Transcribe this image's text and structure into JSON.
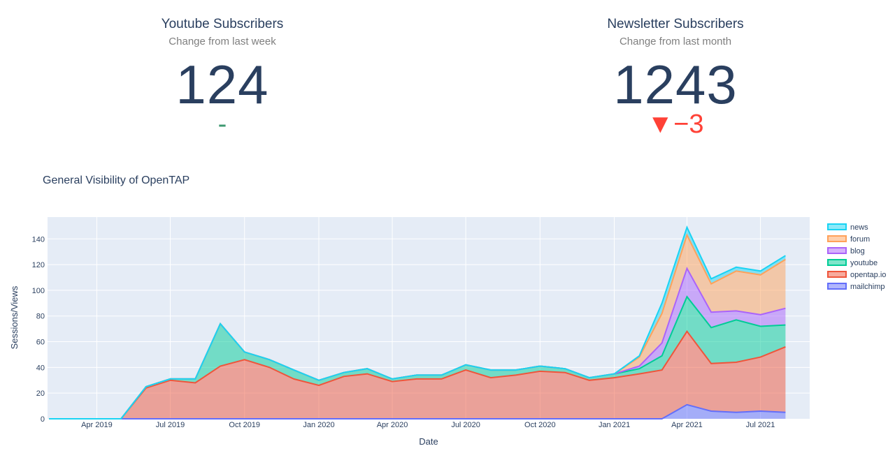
{
  "indicators": [
    {
      "title": "Youtube Subscribers",
      "subtitle": "Change from last week",
      "value": "124",
      "delta": "-",
      "delta_direction": "neutral"
    },
    {
      "title": "Newsletter Subscribers",
      "subtitle": "Change from last month",
      "value": "1243",
      "delta": "▼−3",
      "delta_direction": "down"
    }
  ],
  "chart_data": {
    "type": "area",
    "title": "General Visibility of OpenTAP",
    "xlabel": "Date",
    "ylabel": "Sessions/Views",
    "stacked": true,
    "ylim": [
      0,
      157
    ],
    "y_ticks": [
      0,
      20,
      40,
      60,
      80,
      100,
      120,
      140
    ],
    "x_ticks": [
      "Apr 2019",
      "Jul 2019",
      "Oct 2019",
      "Jan 2020",
      "Apr 2020",
      "Jul 2020",
      "Oct 2020",
      "Jan 2021",
      "Apr 2021",
      "Jul 2021"
    ],
    "x": [
      "2019-02-01",
      "2019-03-01",
      "2019-04-01",
      "2019-05-01",
      "2019-06-01",
      "2019-07-01",
      "2019-08-01",
      "2019-09-01",
      "2019-10-01",
      "2019-11-01",
      "2019-12-01",
      "2020-01-01",
      "2020-02-01",
      "2020-03-01",
      "2020-04-01",
      "2020-05-01",
      "2020-06-01",
      "2020-07-01",
      "2020-08-01",
      "2020-09-01",
      "2020-10-01",
      "2020-11-01",
      "2020-12-01",
      "2021-01-01",
      "2021-02-01",
      "2021-03-01",
      "2021-04-01",
      "2021-05-01",
      "2021-06-01",
      "2021-07-01",
      "2021-08-01"
    ],
    "series": [
      {
        "name": "mailchimp",
        "color": "#636efa",
        "values": [
          0,
          0,
          0,
          0,
          0,
          0,
          0,
          0,
          0,
          0,
          0,
          0,
          0,
          0,
          0,
          0,
          0,
          0,
          0,
          0,
          0,
          0,
          0,
          0,
          0,
          0,
          11,
          6,
          5,
          6,
          5
        ]
      },
      {
        "name": "opentap.io",
        "color": "#ef553b",
        "values": [
          0,
          0,
          0,
          0,
          24,
          30,
          28,
          41,
          46,
          40,
          31,
          26,
          33,
          35,
          29,
          31,
          31,
          38,
          32,
          34,
          37,
          36,
          30,
          32,
          35,
          38,
          57,
          37,
          39,
          42,
          51
        ]
      },
      {
        "name": "youtube",
        "color": "#00cc96",
        "values": [
          0,
          0,
          0,
          0,
          1,
          1,
          3,
          33,
          6,
          6,
          7,
          4,
          3,
          4,
          2,
          3,
          3,
          4,
          6,
          4,
          4,
          3,
          2,
          3,
          4,
          11,
          27,
          28,
          33,
          24,
          17
        ]
      },
      {
        "name": "blog",
        "color": "#ab63fa",
        "values": [
          0,
          0,
          0,
          0,
          0,
          0,
          0,
          0,
          0,
          0,
          0,
          0,
          0,
          0,
          0,
          0,
          0,
          0,
          0,
          0,
          0,
          0,
          0,
          0,
          2,
          10,
          22,
          12,
          7,
          9,
          13
        ]
      },
      {
        "name": "forum",
        "color": "#ffa15a",
        "values": [
          0,
          0,
          0,
          0,
          0,
          0,
          0,
          0,
          0,
          0,
          0,
          0,
          0,
          0,
          0,
          0,
          0,
          0,
          0,
          0,
          0,
          0,
          0,
          0,
          7,
          23,
          26,
          22,
          31,
          31,
          38
        ]
      },
      {
        "name": "news",
        "color": "#19d3f3",
        "values": [
          0,
          0,
          0,
          0,
          0,
          0,
          0,
          0,
          0,
          0,
          0,
          0,
          0,
          0,
          0,
          0,
          0,
          0,
          0,
          0,
          0,
          0,
          0,
          0,
          1,
          8,
          6,
          4,
          3,
          3,
          3
        ]
      }
    ]
  }
}
